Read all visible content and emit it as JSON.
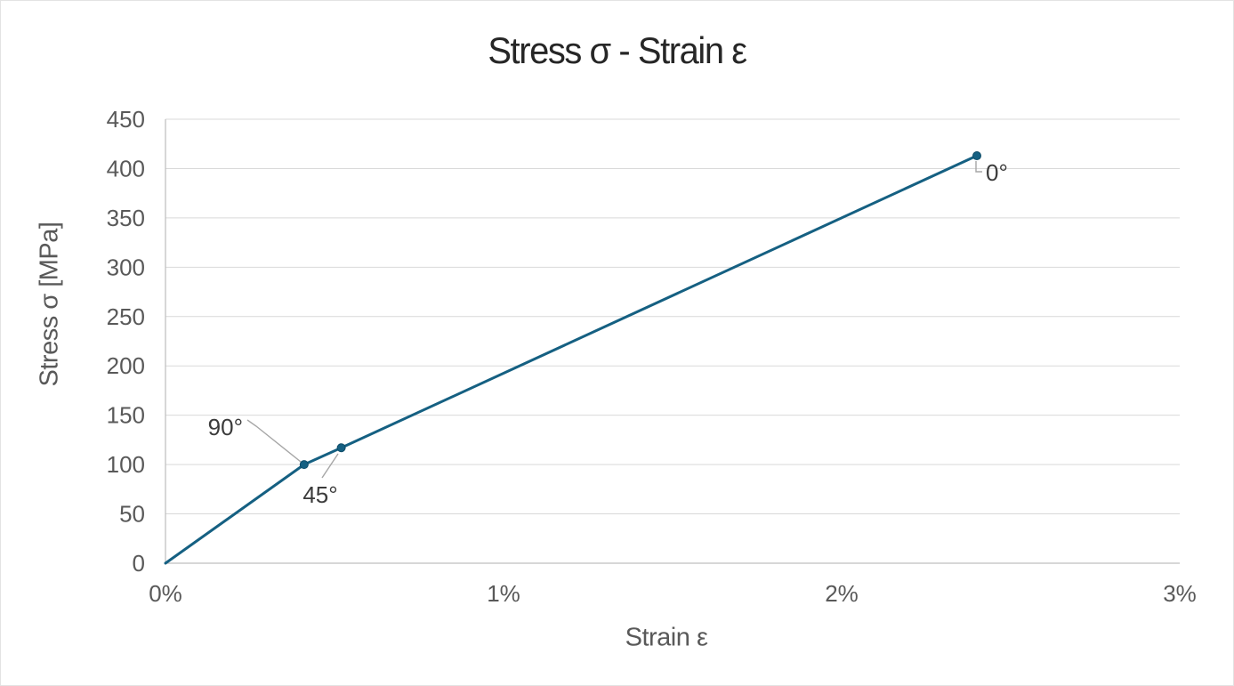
{
  "page": {
    "background": "#FFFFFF",
    "border_color": "#E3E3E3"
  },
  "chart_data": {
    "type": "line",
    "title": "Stress σ - Strain ε",
    "xlabel": "Strain ε",
    "ylabel": "Stress σ [MPa]",
    "xlim": [
      0,
      3
    ],
    "ylim": [
      0,
      450
    ],
    "grid": "horizontal-only",
    "legend": "none",
    "x_ticks": [
      {
        "value": 0,
        "label": "0%"
      },
      {
        "value": 1,
        "label": "1%"
      },
      {
        "value": 2,
        "label": "2%"
      },
      {
        "value": 3,
        "label": "3%"
      }
    ],
    "y_ticks": [
      {
        "value": 0,
        "label": "0"
      },
      {
        "value": 50,
        "label": "50"
      },
      {
        "value": 100,
        "label": "100"
      },
      {
        "value": 150,
        "label": "150"
      },
      {
        "value": 200,
        "label": "200"
      },
      {
        "value": 250,
        "label": "250"
      },
      {
        "value": 300,
        "label": "300"
      },
      {
        "value": 350,
        "label": "350"
      },
      {
        "value": 400,
        "label": "400"
      },
      {
        "value": 450,
        "label": "450"
      }
    ],
    "series": [
      {
        "name": "stress-strain-curve",
        "color": "#156082",
        "marker": "circle",
        "points": [
          {
            "x": 0,
            "y": 0,
            "label": ""
          },
          {
            "x": 0.41,
            "y": 100,
            "label": "90°"
          },
          {
            "x": 0.52,
            "y": 117,
            "label": "45°"
          },
          {
            "x": 2.4,
            "y": 413,
            "label": "0°"
          }
        ]
      }
    ],
    "colors": {
      "series": "#156082",
      "marker_edge": "#0F4C68",
      "gridline": "#D9D9D9",
      "axis_line": "#BFBFBF",
      "tick_text": "#595959",
      "axis_title_text": "#595959",
      "title_text": "#262626",
      "annotation_text": "#3B3B3B",
      "leader_line": "#A6A6A6"
    }
  }
}
